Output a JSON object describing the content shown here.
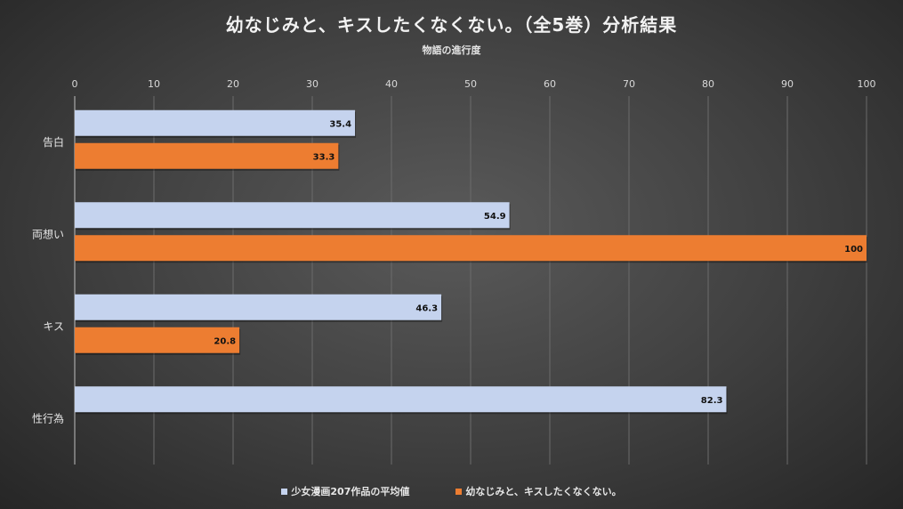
{
  "colors": {
    "series1": "#c5d3ee",
    "series2": "#ed7d31"
  },
  "chart_data": {
    "type": "bar",
    "orientation": "horizontal",
    "title": "幼なじみと、キスしたくなくない。（全5巻）分析結果",
    "subtitle": "物語の進行度",
    "categories": [
      "告白",
      "両想い",
      "キス",
      "性行為"
    ],
    "series": [
      {
        "name": "少女漫画207作品の平均値",
        "values": [
          35.4,
          54.9,
          46.3,
          82.3
        ]
      },
      {
        "name": "幼なじみと、キスしたくなくない。",
        "values": [
          33.3,
          100,
          20.8,
          null
        ]
      }
    ],
    "xlim": [
      0,
      100
    ],
    "xticks": [
      0,
      10,
      20,
      30,
      40,
      50,
      60,
      70,
      80,
      90,
      100
    ],
    "x_axis_position": "top",
    "grid": true,
    "legend": "bottom"
  }
}
